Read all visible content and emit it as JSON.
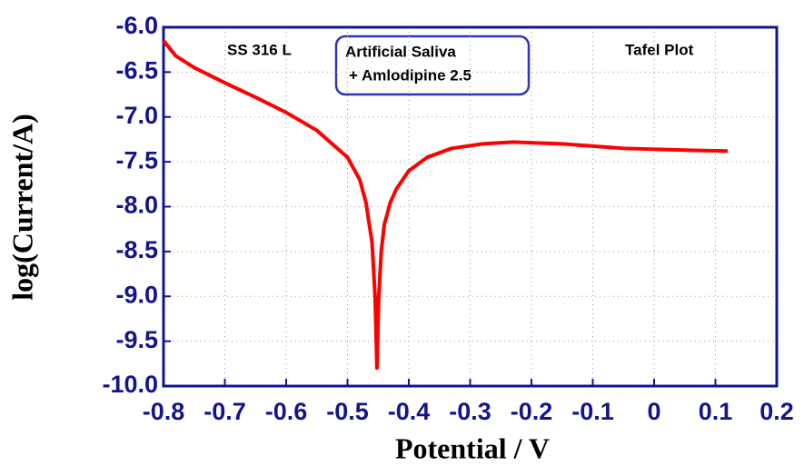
{
  "chart_data": {
    "type": "line",
    "x_label": "Potential / V",
    "y_label": "log(Current/A)",
    "annotations": [
      "SS 316 L",
      "Tafel Plot"
    ],
    "box_text": [
      "Artificial Saliva",
      "+ Amlodipine 2.5"
    ],
    "grid": true,
    "series": [
      {
        "name": "SS 316 L",
        "color": "#ff0000",
        "x": [
          -0.8,
          -0.78,
          -0.75,
          -0.7,
          -0.65,
          -0.6,
          -0.55,
          -0.5,
          -0.48,
          -0.47,
          -0.46,
          -0.455,
          -0.452,
          -0.449,
          -0.445,
          -0.44,
          -0.43,
          -0.42,
          -0.4,
          -0.37,
          -0.33,
          -0.28,
          -0.23,
          -0.15,
          -0.05,
          0.05,
          0.12
        ],
        "values": [
          -6.15,
          -6.32,
          -6.45,
          -6.62,
          -6.78,
          -6.95,
          -7.15,
          -7.45,
          -7.7,
          -7.95,
          -8.4,
          -9.0,
          -9.8,
          -9.0,
          -8.5,
          -8.2,
          -7.95,
          -7.8,
          -7.6,
          -7.45,
          -7.35,
          -7.3,
          -7.28,
          -7.3,
          -7.35,
          -7.37,
          -7.38
        ]
      }
    ],
    "xlim": [
      -0.8,
      0.2
    ],
    "xticks": [
      -0.8,
      -0.7,
      -0.6,
      -0.5,
      -0.4,
      -0.3,
      -0.2,
      -0.1,
      0,
      0.1,
      0.2
    ],
    "ylim": [
      -10.0,
      -6.0
    ],
    "yticks": [
      {
        "value": -10.0,
        "label": "-10.0"
      },
      {
        "value": -9.5,
        "label": "-9.5"
      },
      {
        "value": -9.0,
        "label": "-9.0"
      },
      {
        "value": -8.5,
        "label": "-8.5"
      },
      {
        "value": -8.0,
        "label": "-8.0"
      },
      {
        "value": -7.5,
        "label": "-7.5"
      },
      {
        "value": -7.0,
        "label": "-7.0"
      },
      {
        "value": -6.5,
        "label": "-6.5"
      },
      {
        "value": -6.0,
        "label": "-6.0"
      }
    ]
  }
}
